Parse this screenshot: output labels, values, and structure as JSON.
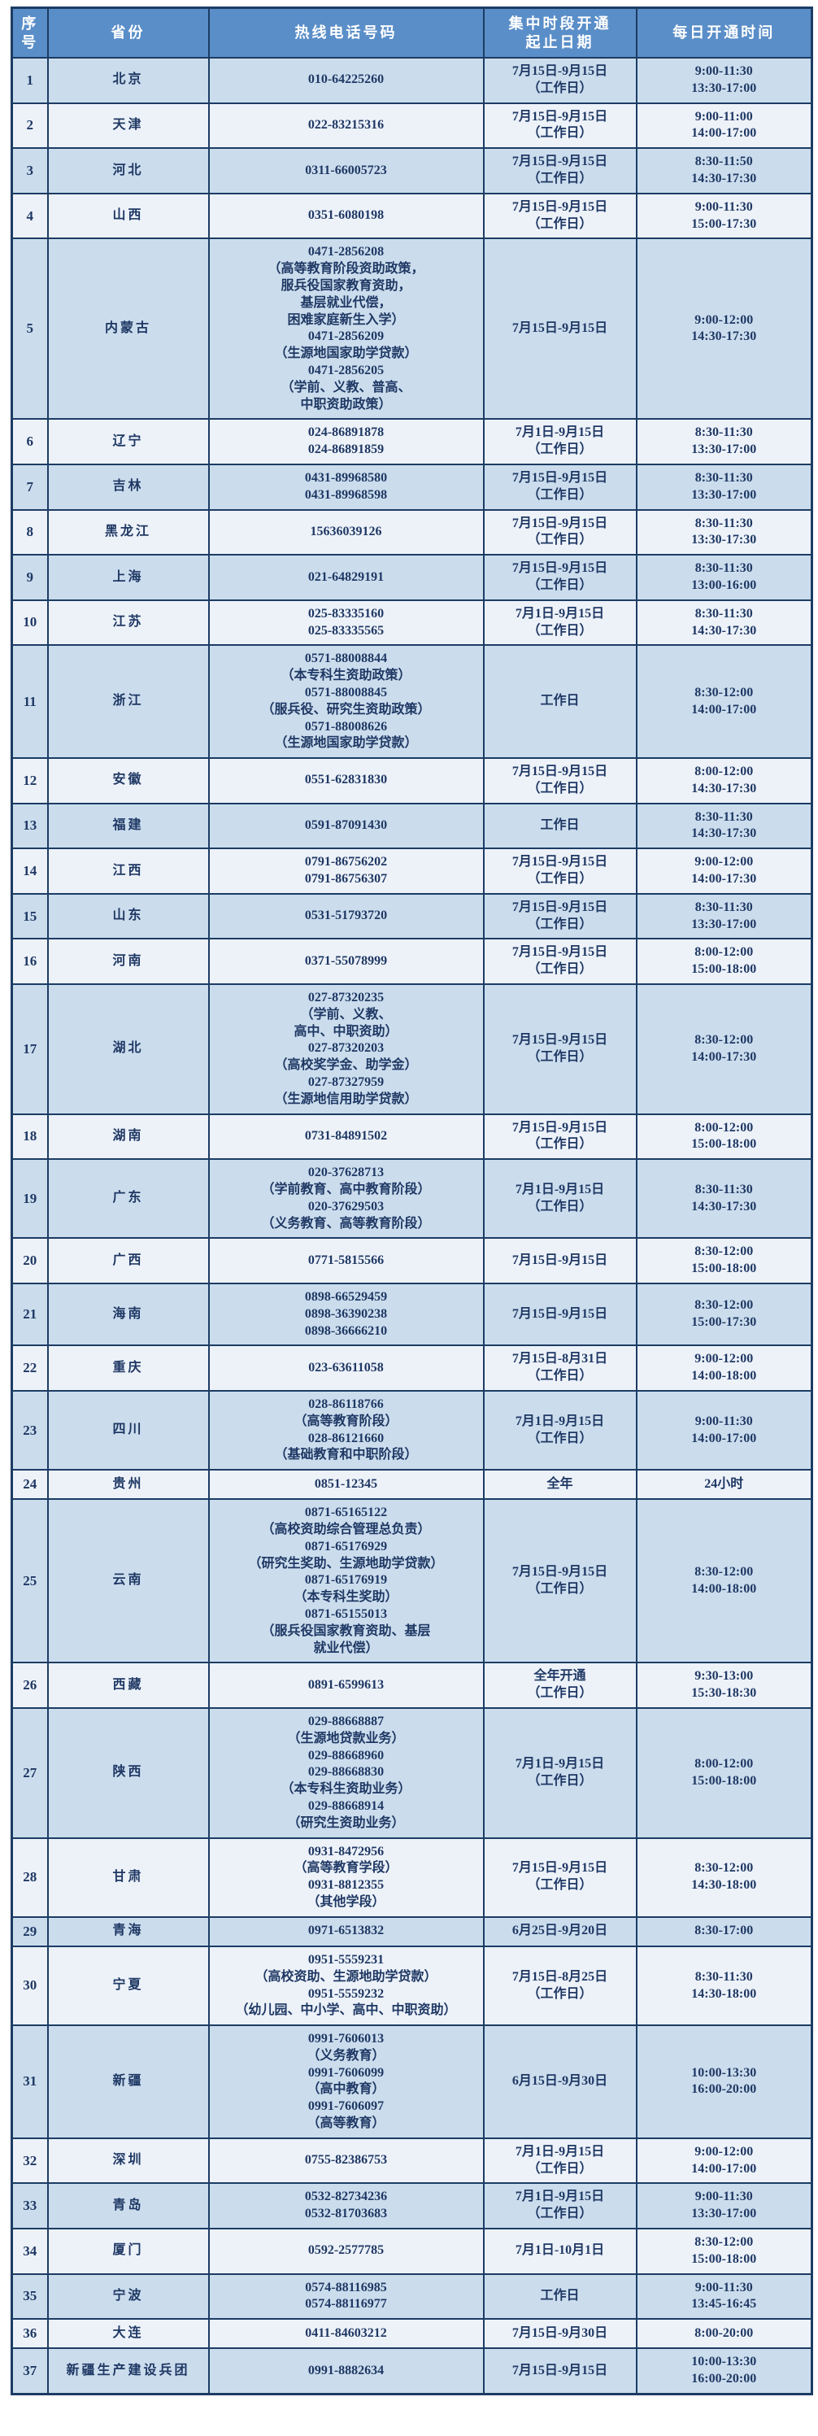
{
  "table": {
    "headers": [
      "序号",
      "省份",
      "热线电话号码",
      "集中时段开通\n起止日期",
      "每日开通时间"
    ],
    "rows": [
      {
        "num": "1",
        "province": "北京",
        "phones": [
          "010-64225260"
        ],
        "dates": [
          "7月15日-9月15日",
          "（工作日）"
        ],
        "times": [
          "9:00-11:30",
          "13:30-17:00"
        ]
      },
      {
        "num": "2",
        "province": "天津",
        "phones": [
          "022-83215316"
        ],
        "dates": [
          "7月15日-9月15日",
          "（工作日）"
        ],
        "times": [
          "9:00-11:00",
          "14:00-17:00"
        ]
      },
      {
        "num": "3",
        "province": "河北",
        "phones": [
          "0311-66005723"
        ],
        "dates": [
          "7月15日-9月15日",
          "（工作日）"
        ],
        "times": [
          "8:30-11:50",
          "14:30-17:30"
        ]
      },
      {
        "num": "4",
        "province": "山西",
        "phones": [
          "0351-6080198"
        ],
        "dates": [
          "7月15日-9月15日",
          "（工作日）"
        ],
        "times": [
          "9:00-11:30",
          "15:00-17:30"
        ]
      },
      {
        "num": "5",
        "province": "内蒙古",
        "phones": [
          "0471-2856208",
          "（高等教育阶段资助政策，",
          "服兵役国家教育资助，",
          "基层就业代偿，",
          "困难家庭新生入学）",
          "0471-2856209",
          "（生源地国家助学贷款）",
          "0471-2856205",
          "（学前、义教、普高、",
          "中职资助政策）"
        ],
        "dates": [
          "7月15日-9月15日"
        ],
        "times": [
          "9:00-12:00",
          "14:30-17:30"
        ]
      },
      {
        "num": "6",
        "province": "辽宁",
        "phones": [
          "024-86891878",
          "024-86891859"
        ],
        "dates": [
          "7月1日-9月15日",
          "（工作日）"
        ],
        "times": [
          "8:30-11:30",
          "13:30-17:00"
        ]
      },
      {
        "num": "7",
        "province": "吉林",
        "phones": [
          "0431-89968580",
          "0431-89968598"
        ],
        "dates": [
          "7月15日-9月15日",
          "（工作日）"
        ],
        "times": [
          "8:30-11:30",
          "13:30-17:00"
        ]
      },
      {
        "num": "8",
        "province": "黑龙江",
        "phones": [
          "15636039126"
        ],
        "dates": [
          "7月15日-9月15日",
          "（工作日）"
        ],
        "times": [
          "8:30-11:30",
          "13:30-17:30"
        ]
      },
      {
        "num": "9",
        "province": "上海",
        "phones": [
          "021-64829191"
        ],
        "dates": [
          "7月15日-9月15日",
          "（工作日）"
        ],
        "times": [
          "8:30-11:30",
          "13:00-16:00"
        ]
      },
      {
        "num": "10",
        "province": "江苏",
        "phones": [
          "025-83335160",
          "025-83335565"
        ],
        "dates": [
          "7月1日-9月15日",
          "（工作日）"
        ],
        "times": [
          "8:30-11:30",
          "14:30-17:30"
        ]
      },
      {
        "num": "11",
        "province": "浙江",
        "phones": [
          "0571-88008844",
          "（本专科生资助政策）",
          "0571-88008845",
          "（服兵役、研究生资助政策）",
          "0571-88008626",
          "（生源地国家助学贷款）"
        ],
        "dates": [
          "工作日"
        ],
        "times": [
          "8:30-12:00",
          "14:00-17:00"
        ]
      },
      {
        "num": "12",
        "province": "安徽",
        "phones": [
          "0551-62831830"
        ],
        "dates": [
          "7月15日-9月15日",
          "（工作日）"
        ],
        "times": [
          "8:00-12:00",
          "14:30-17:30"
        ]
      },
      {
        "num": "13",
        "province": "福建",
        "phones": [
          "0591-87091430"
        ],
        "dates": [
          "工作日"
        ],
        "times": [
          "8:30-11:30",
          "14:30-17:30"
        ]
      },
      {
        "num": "14",
        "province": "江西",
        "phones": [
          "0791-86756202",
          "0791-86756307"
        ],
        "dates": [
          "7月15日-9月15日",
          "（工作日）"
        ],
        "times": [
          "9:00-12:00",
          "14:00-17:30"
        ]
      },
      {
        "num": "15",
        "province": "山东",
        "phones": [
          "0531-51793720"
        ],
        "dates": [
          "7月15日-9月15日",
          "（工作日）"
        ],
        "times": [
          "8:30-11:30",
          "13:30-17:00"
        ]
      },
      {
        "num": "16",
        "province": "河南",
        "phones": [
          "0371-55078999"
        ],
        "dates": [
          "7月15日-9月15日",
          "（工作日）"
        ],
        "times": [
          "8:00-12:00",
          "15:00-18:00"
        ]
      },
      {
        "num": "17",
        "province": "湖北",
        "phones": [
          "027-87320235",
          "（学前、义教、",
          "高中、中职资助）",
          "027-87320203",
          "（高校奖学金、助学金）",
          "027-87327959",
          "（生源地信用助学贷款）"
        ],
        "dates": [
          "7月15日-9月15日",
          "（工作日）"
        ],
        "times": [
          "8:30-12:00",
          "14:00-17:30"
        ]
      },
      {
        "num": "18",
        "province": "湖南",
        "phones": [
          "0731-84891502"
        ],
        "dates": [
          "7月15日-9月15日",
          "（工作日）"
        ],
        "times": [
          "8:00-12:00",
          "15:00-18:00"
        ]
      },
      {
        "num": "19",
        "province": "广东",
        "phones": [
          "020-37628713",
          "（学前教育、高中教育阶段）",
          "020-37629503",
          "（义务教育、高等教育阶段）"
        ],
        "dates": [
          "7月1日-9月15日",
          "（工作日）"
        ],
        "times": [
          "8:30-11:30",
          "14:30-17:30"
        ]
      },
      {
        "num": "20",
        "province": "广西",
        "phones": [
          "0771-5815566"
        ],
        "dates": [
          "7月15日-9月15日"
        ],
        "times": [
          "8:30-12:00",
          "15:00-18:00"
        ]
      },
      {
        "num": "21",
        "province": "海南",
        "phones": [
          "0898-66529459",
          "0898-36390238",
          "0898-36666210"
        ],
        "dates": [
          "7月15日-9月15日"
        ],
        "times": [
          "8:30-12:00",
          "15:00-17:30"
        ]
      },
      {
        "num": "22",
        "province": "重庆",
        "phones": [
          "023-63611058"
        ],
        "dates": [
          "7月15日-8月31日",
          "（工作日）"
        ],
        "times": [
          "9:00-12:00",
          "14:00-18:00"
        ]
      },
      {
        "num": "23",
        "province": "四川",
        "phones": [
          "028-86118766",
          "（高等教育阶段）",
          "028-86121660",
          "（基础教育和中职阶段）"
        ],
        "dates": [
          "7月1日-9月15日",
          "（工作日）"
        ],
        "times": [
          "9:00-11:30",
          "14:00-17:00"
        ]
      },
      {
        "num": "24",
        "province": "贵州",
        "phones": [
          "0851-12345"
        ],
        "dates": [
          "全年"
        ],
        "times": [
          "24小时"
        ]
      },
      {
        "num": "25",
        "province": "云南",
        "phones": [
          "0871-65165122",
          "（高校资助综合管理总负责）",
          "0871-65176929",
          "（研究生奖助、生源地助学贷款）",
          "0871-65176919",
          "（本专科生奖助）",
          "0871-65155013",
          "（服兵役国家教育资助、基层",
          "就业代偿）"
        ],
        "dates": [
          "7月15日-9月15日",
          "（工作日）"
        ],
        "times": [
          "8:30-12:00",
          "14:00-18:00"
        ]
      },
      {
        "num": "26",
        "province": "西藏",
        "phones": [
          "0891-6599613"
        ],
        "dates": [
          "全年开通",
          "（工作日）"
        ],
        "times": [
          "9:30-13:00",
          "15:30-18:30"
        ]
      },
      {
        "num": "27",
        "province": "陕西",
        "phones": [
          "029-88668887",
          "（生源地贷款业务）",
          "029-88668960",
          "029-88668830",
          "（本专科生资助业务）",
          "029-88668914",
          "（研究生资助业务）"
        ],
        "dates": [
          "7月1日-9月15日",
          "（工作日）"
        ],
        "times": [
          "8:00-12:00",
          "15:00-18:00"
        ]
      },
      {
        "num": "28",
        "province": "甘肃",
        "phones": [
          "0931-8472956",
          "（高等教育学段）",
          "0931-8812355",
          "（其他学段）"
        ],
        "dates": [
          "7月15日-9月15日",
          "（工作日）"
        ],
        "times": [
          "8:30-12:00",
          "14:30-18:00"
        ]
      },
      {
        "num": "29",
        "province": "青海",
        "phones": [
          "0971-6513832"
        ],
        "dates": [
          "6月25日-9月20日"
        ],
        "times": [
          "8:30-17:00"
        ]
      },
      {
        "num": "30",
        "province": "宁夏",
        "phones": [
          "0951-5559231",
          "（高校资助、生源地助学贷款）",
          "0951-5559232",
          "（幼儿园、中小学、高中、中职资助）"
        ],
        "dates": [
          "7月15日-8月25日",
          "（工作日）"
        ],
        "times": [
          "8:30-11:30",
          "14:30-18:00"
        ]
      },
      {
        "num": "31",
        "province": "新疆",
        "phones": [
          "0991-7606013",
          "（义务教育）",
          "0991-7606099",
          "（高中教育）",
          "0991-7606097",
          "（高等教育）"
        ],
        "dates": [
          "6月15日-9月30日"
        ],
        "times": [
          "10:00-13:30",
          "16:00-20:00"
        ]
      },
      {
        "num": "32",
        "province": "深圳",
        "phones": [
          "0755-82386753"
        ],
        "dates": [
          "7月1日-9月15日",
          "（工作日）"
        ],
        "times": [
          "9:00-12:00",
          "14:00-17:00"
        ]
      },
      {
        "num": "33",
        "province": "青岛",
        "phones": [
          "0532-82734236",
          "0532-81703683"
        ],
        "dates": [
          "7月1日-9月15日",
          "（工作日）"
        ],
        "times": [
          "9:00-11:30",
          "13:30-17:00"
        ]
      },
      {
        "num": "34",
        "province": "厦门",
        "phones": [
          "0592-2577785"
        ],
        "dates": [
          "7月1日-10月1日"
        ],
        "times": [
          "8:30-12:00",
          "15:00-18:00"
        ]
      },
      {
        "num": "35",
        "province": "宁波",
        "phones": [
          "0574-88116985",
          "0574-88116977"
        ],
        "dates": [
          "工作日"
        ],
        "times": [
          "9:00-11:30",
          "13:45-16:45"
        ]
      },
      {
        "num": "36",
        "province": "大连",
        "phones": [
          "0411-84603212"
        ],
        "dates": [
          "7月15日-9月30日"
        ],
        "times": [
          "8:00-20:00"
        ]
      },
      {
        "num": "37",
        "province": "新疆生产建设兵团",
        "phones": [
          "0991-8882634"
        ],
        "dates": [
          "7月15日-9月15日"
        ],
        "times": [
          "10:00-13:30",
          "16:00-20:00"
        ]
      }
    ]
  },
  "colors": {
    "header_bg": "#5a8ec8",
    "row_odd_bg": "#cbdded",
    "row_even_bg": "#edf2f9",
    "border": "#1c3c64",
    "text": "#1f3864",
    "header_text": "#ffffff"
  }
}
